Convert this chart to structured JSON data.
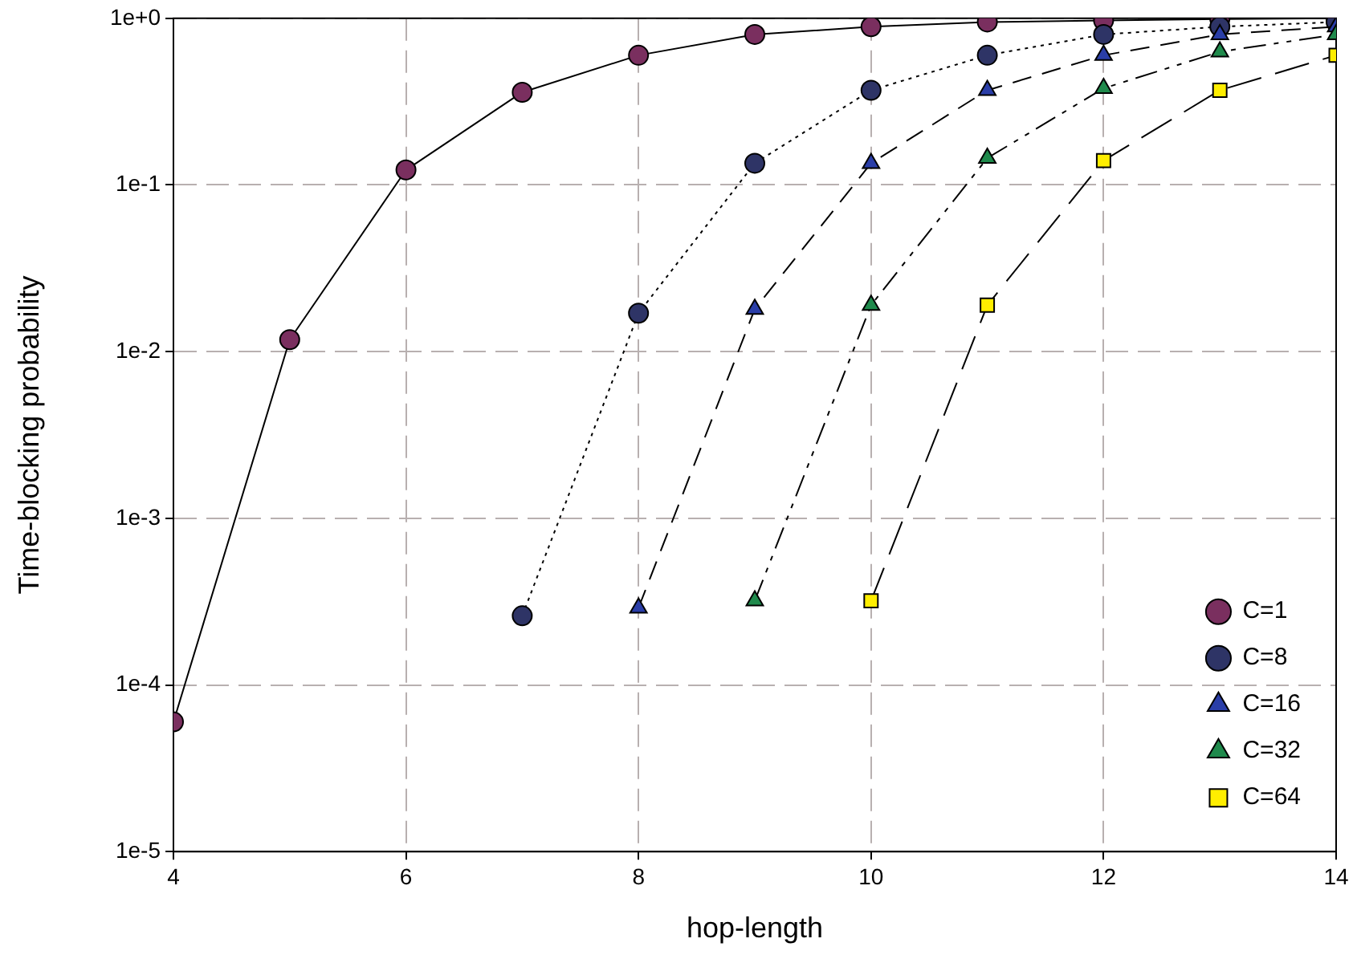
{
  "chart_data": {
    "type": "line",
    "xlabel": "hop-length",
    "ylabel": "Time-blocking probability",
    "xlim": [
      4,
      14
    ],
    "xticks": [
      4,
      6,
      8,
      10,
      12,
      14
    ],
    "ylim": [
      1e-05,
      1
    ],
    "yticks": [
      {
        "value": 1e-05,
        "label": "1e-5"
      },
      {
        "value": 0.0001,
        "label": "1e-4"
      },
      {
        "value": 0.001,
        "label": "1e-3"
      },
      {
        "value": 0.01,
        "label": "1e-2"
      },
      {
        "value": 0.1,
        "label": "1e-1"
      },
      {
        "value": 1,
        "label": "1e+0"
      }
    ],
    "log": "y",
    "grid": true,
    "legend": "bottom right",
    "series": [
      {
        "name": "C=1",
        "color": "#7a2f5f",
        "marker": "circle",
        "line_style": "solid",
        "x": [
          4,
          5,
          6,
          7,
          8,
          9,
          10,
          11,
          12,
          13,
          14
        ],
        "values": [
          6e-05,
          0.0118,
          0.123,
          0.36,
          0.6,
          0.8,
          0.89,
          0.95,
          0.97,
          0.99,
          1
        ]
      },
      {
        "name": "C=8",
        "color": "#2e3466",
        "marker": "circle",
        "line_style": "dotted",
        "x": [
          7,
          8,
          9,
          10,
          11,
          12,
          13,
          14
        ],
        "values": [
          0.00026,
          0.017,
          0.135,
          0.37,
          0.6,
          0.8,
          0.89,
          0.95
        ]
      },
      {
        "name": "C=16",
        "color": "#2a3ea8",
        "marker": "triangle",
        "line_style": "dashed",
        "x": [
          8,
          9,
          10,
          11,
          12,
          13,
          14
        ],
        "values": [
          0.00029,
          0.018,
          0.135,
          0.37,
          0.6,
          0.8,
          0.89
        ]
      },
      {
        "name": "C=32",
        "color": "#1f8a4c",
        "marker": "triangle",
        "line_style": "dashed",
        "x": [
          9,
          10,
          11,
          12,
          13,
          14
        ],
        "values": [
          0.00032,
          0.019,
          0.145,
          0.38,
          0.63,
          0.8
        ]
      },
      {
        "name": "C=64",
        "color": "#ffee00",
        "marker": "square",
        "line_style": "dashed",
        "x": [
          10,
          11,
          12,
          13,
          14
        ],
        "values": [
          0.00032,
          0.019,
          0.14,
          0.37,
          0.6
        ]
      }
    ]
  }
}
